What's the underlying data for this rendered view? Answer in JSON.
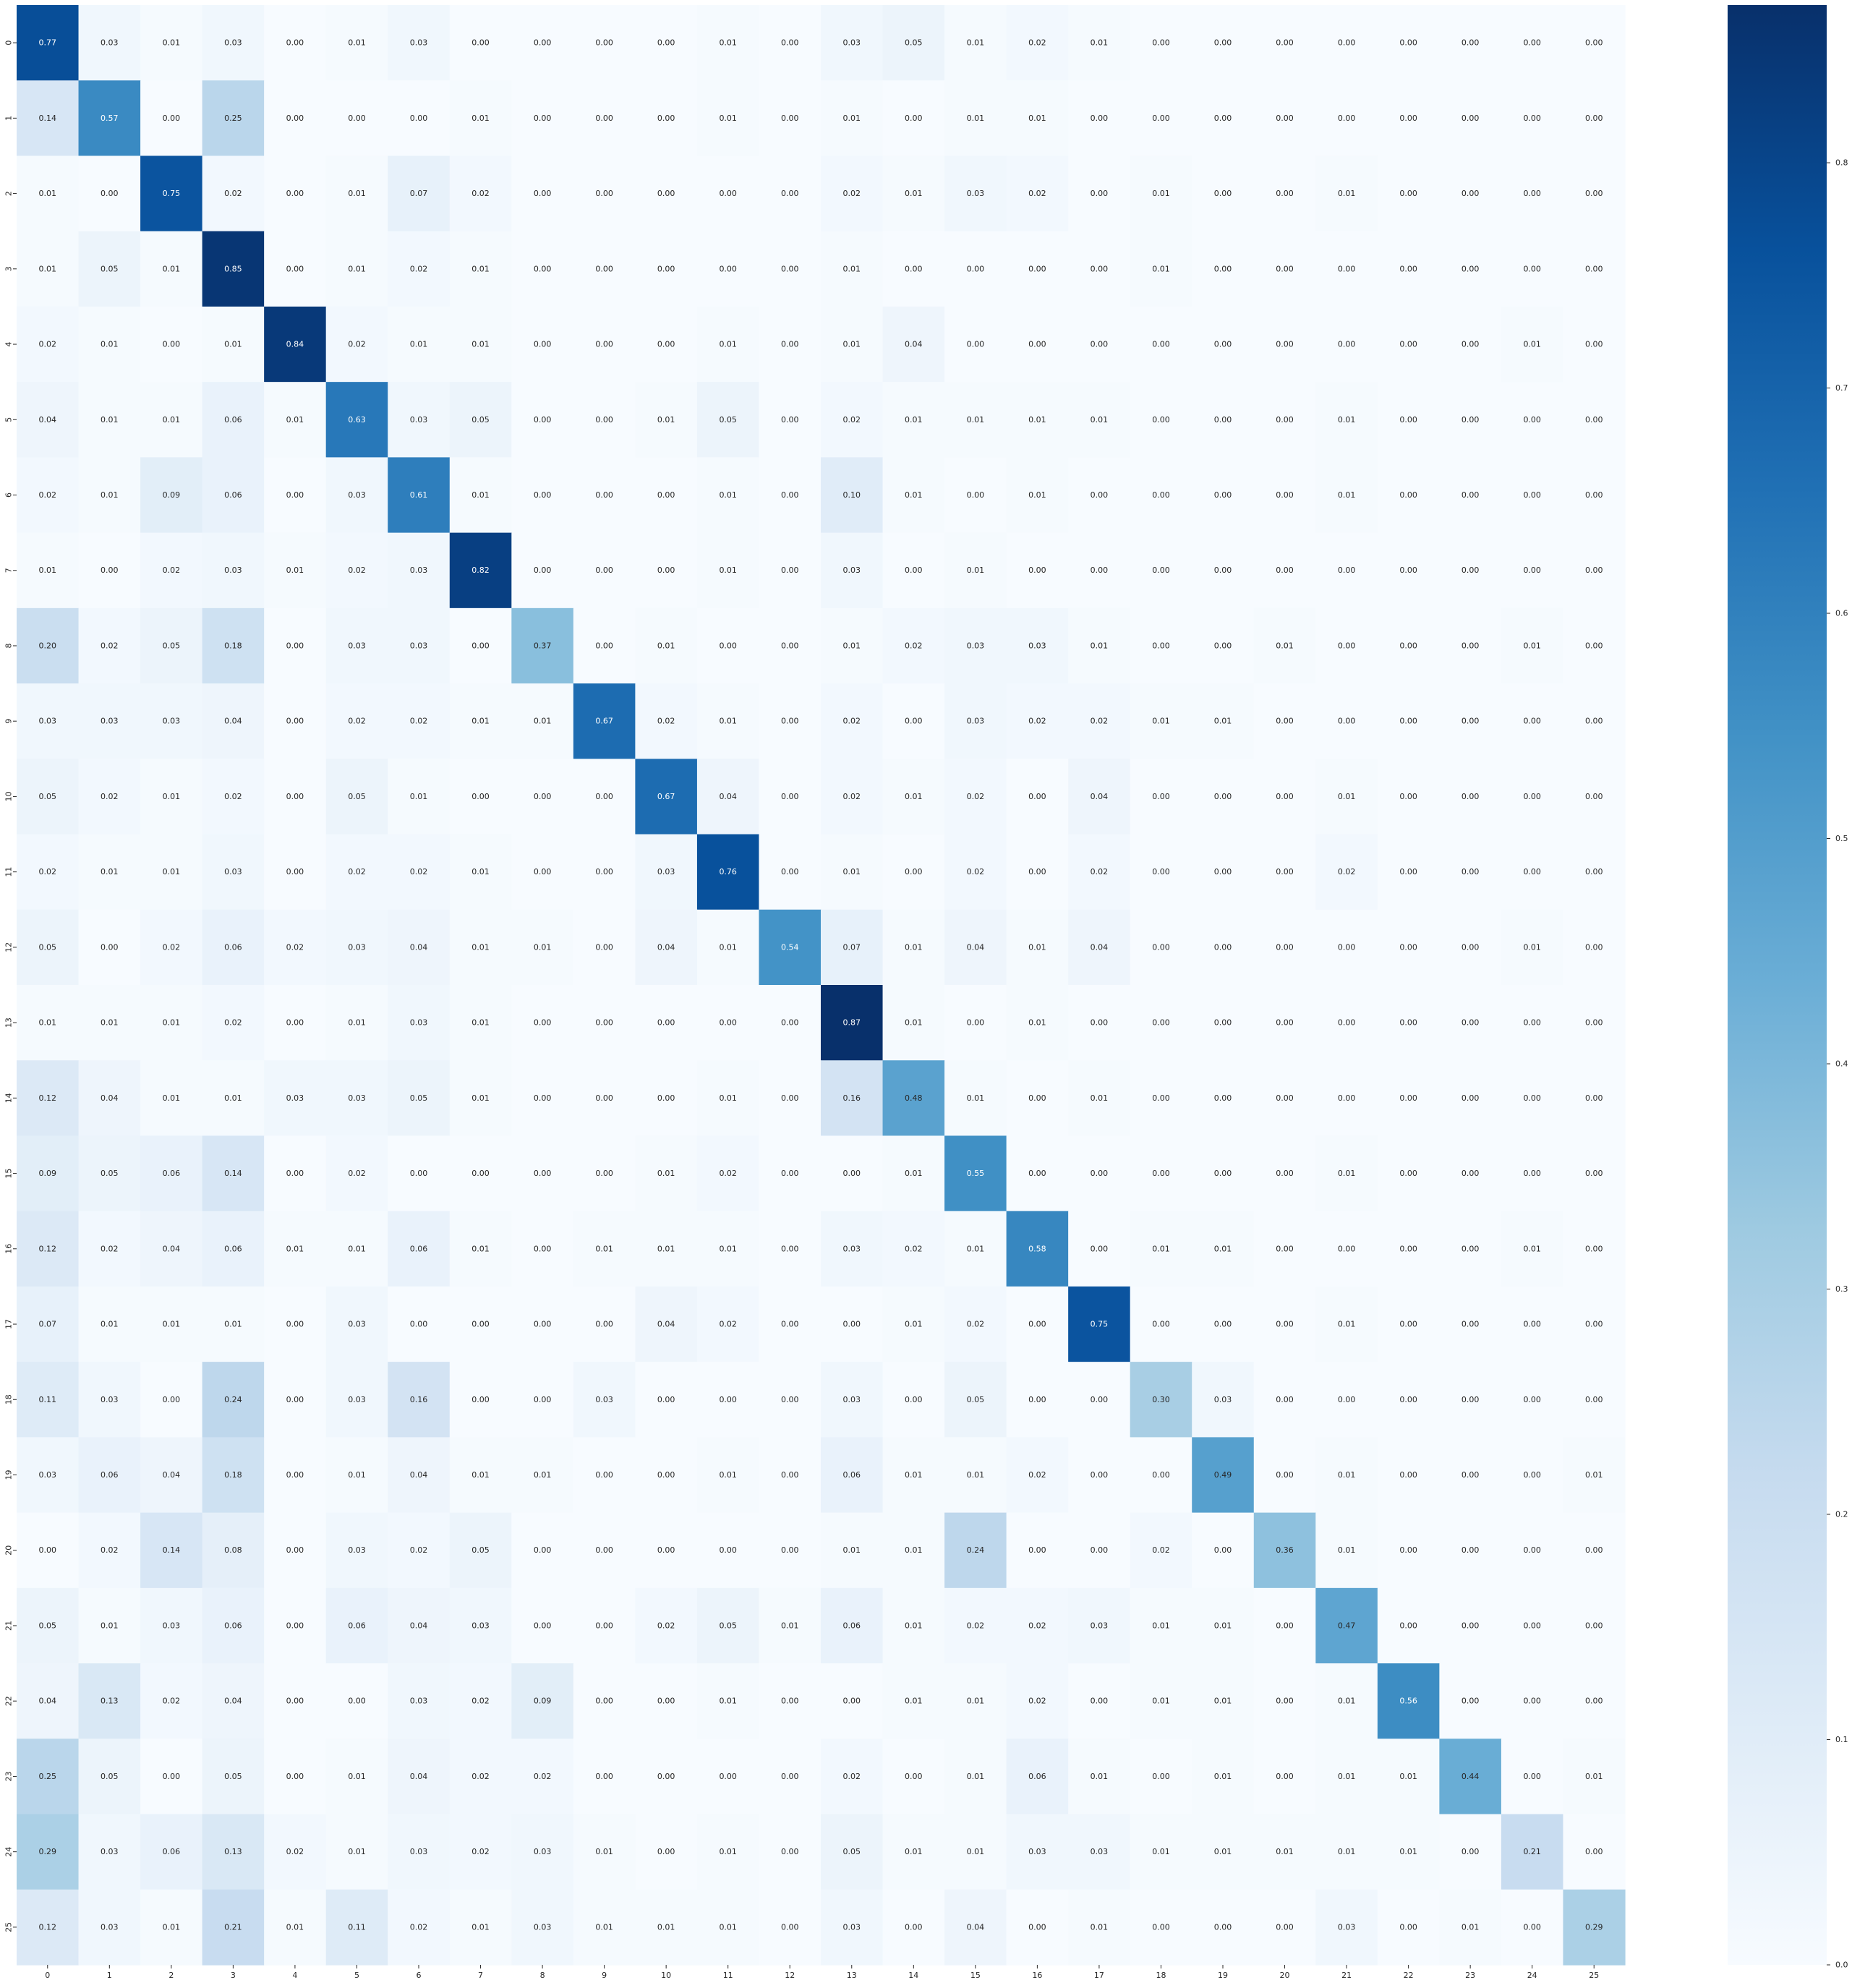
{
  "chart_data": {
    "type": "heatmap",
    "title": "",
    "xlabel": "",
    "ylabel": "",
    "x_categories": [
      "0",
      "1",
      "2",
      "3",
      "4",
      "5",
      "6",
      "7",
      "8",
      "9",
      "10",
      "11",
      "12",
      "13",
      "14",
      "15",
      "16",
      "17",
      "18",
      "19",
      "20",
      "21",
      "22",
      "23",
      "24",
      "25"
    ],
    "y_categories": [
      "0",
      "1",
      "2",
      "3",
      "4",
      "5",
      "6",
      "7",
      "8",
      "9",
      "10",
      "11",
      "12",
      "13",
      "14",
      "15",
      "16",
      "17",
      "18",
      "19",
      "20",
      "21",
      "22",
      "23",
      "24",
      "25"
    ],
    "colormap": "Blues",
    "vmin": 0.0,
    "vmax": 0.87,
    "colorbar_ticks": [
      "0.0",
      "0.1",
      "0.2",
      "0.3",
      "0.4",
      "0.5",
      "0.6",
      "0.7",
      "0.8"
    ],
    "value_format": "0.00",
    "grid": false,
    "values": [
      [
        0.77,
        0.03,
        0.01,
        0.03,
        0.0,
        0.01,
        0.03,
        0.0,
        0.0,
        0.0,
        0.0,
        0.01,
        0.0,
        0.03,
        0.05,
        0.01,
        0.02,
        0.01,
        0.0,
        0.0,
        0.0,
        0.0,
        0.0,
        0.0,
        0.0,
        0.0
      ],
      [
        0.14,
        0.57,
        0.0,
        0.25,
        0.0,
        0.0,
        0.0,
        0.01,
        0.0,
        0.0,
        0.0,
        0.01,
        0.0,
        0.01,
        0.0,
        0.01,
        0.01,
        0.0,
        0.0,
        0.0,
        0.0,
        0.0,
        0.0,
        0.0,
        0.0,
        0.0
      ],
      [
        0.01,
        0.0,
        0.75,
        0.02,
        0.0,
        0.01,
        0.07,
        0.02,
        0.0,
        0.0,
        0.0,
        0.0,
        0.0,
        0.02,
        0.01,
        0.03,
        0.02,
        0.0,
        0.01,
        0.0,
        0.0,
        0.01,
        0.0,
        0.0,
        0.0,
        0.0
      ],
      [
        0.01,
        0.05,
        0.01,
        0.85,
        0.0,
        0.01,
        0.02,
        0.01,
        0.0,
        0.0,
        0.0,
        0.0,
        0.0,
        0.01,
        0.0,
        0.0,
        0.0,
        0.0,
        0.01,
        0.0,
        0.0,
        0.0,
        0.0,
        0.0,
        0.0,
        0.0
      ],
      [
        0.02,
        0.01,
        0.0,
        0.01,
        0.84,
        0.02,
        0.01,
        0.01,
        0.0,
        0.0,
        0.0,
        0.01,
        0.0,
        0.01,
        0.04,
        0.0,
        0.0,
        0.0,
        0.0,
        0.0,
        0.0,
        0.0,
        0.0,
        0.0,
        0.01,
        0.0
      ],
      [
        0.04,
        0.01,
        0.01,
        0.06,
        0.01,
        0.63,
        0.03,
        0.05,
        0.0,
        0.0,
        0.01,
        0.05,
        0.0,
        0.02,
        0.01,
        0.01,
        0.01,
        0.01,
        0.0,
        0.0,
        0.0,
        0.01,
        0.0,
        0.0,
        0.0,
        0.0
      ],
      [
        0.02,
        0.01,
        0.09,
        0.06,
        0.0,
        0.03,
        0.61,
        0.01,
        0.0,
        0.0,
        0.0,
        0.01,
        0.0,
        0.1,
        0.01,
        0.0,
        0.01,
        0.0,
        0.0,
        0.0,
        0.0,
        0.01,
        0.0,
        0.0,
        0.0,
        0.0
      ],
      [
        0.01,
        0.0,
        0.02,
        0.03,
        0.01,
        0.02,
        0.03,
        0.82,
        0.0,
        0.0,
        0.0,
        0.01,
        0.0,
        0.03,
        0.0,
        0.01,
        0.0,
        0.0,
        0.0,
        0.0,
        0.0,
        0.0,
        0.0,
        0.0,
        0.0,
        0.0
      ],
      [
        0.2,
        0.02,
        0.05,
        0.18,
        0.0,
        0.03,
        0.03,
        0.0,
        0.37,
        0.0,
        0.01,
        0.0,
        0.0,
        0.01,
        0.02,
        0.03,
        0.03,
        0.01,
        0.0,
        0.0,
        0.01,
        0.0,
        0.0,
        0.0,
        0.01,
        0.0
      ],
      [
        0.03,
        0.03,
        0.03,
        0.04,
        0.0,
        0.02,
        0.02,
        0.01,
        0.01,
        0.67,
        0.02,
        0.01,
        0.0,
        0.02,
        0.0,
        0.03,
        0.02,
        0.02,
        0.01,
        0.01,
        0.0,
        0.0,
        0.0,
        0.0,
        0.0,
        0.0
      ],
      [
        0.05,
        0.02,
        0.01,
        0.02,
        0.0,
        0.05,
        0.01,
        0.0,
        0.0,
        0.0,
        0.67,
        0.04,
        0.0,
        0.02,
        0.01,
        0.02,
        0.0,
        0.04,
        0.0,
        0.0,
        0.0,
        0.01,
        0.0,
        0.0,
        0.0,
        0.0
      ],
      [
        0.02,
        0.01,
        0.01,
        0.03,
        0.0,
        0.02,
        0.02,
        0.01,
        0.0,
        0.0,
        0.03,
        0.76,
        0.0,
        0.01,
        0.0,
        0.02,
        0.0,
        0.02,
        0.0,
        0.0,
        0.0,
        0.02,
        0.0,
        0.0,
        0.0,
        0.0
      ],
      [
        0.05,
        0.0,
        0.02,
        0.06,
        0.02,
        0.03,
        0.04,
        0.01,
        0.01,
        0.0,
        0.04,
        0.01,
        0.54,
        0.07,
        0.01,
        0.04,
        0.01,
        0.04,
        0.0,
        0.0,
        0.0,
        0.0,
        0.0,
        0.0,
        0.01,
        0.0
      ],
      [
        0.01,
        0.01,
        0.01,
        0.02,
        0.0,
        0.01,
        0.03,
        0.01,
        0.0,
        0.0,
        0.0,
        0.0,
        0.0,
        0.87,
        0.01,
        0.0,
        0.01,
        0.0,
        0.0,
        0.0,
        0.0,
        0.0,
        0.0,
        0.0,
        0.0,
        0.0
      ],
      [
        0.12,
        0.04,
        0.01,
        0.01,
        0.03,
        0.03,
        0.05,
        0.01,
        0.0,
        0.0,
        0.0,
        0.01,
        0.0,
        0.16,
        0.48,
        0.01,
        0.0,
        0.01,
        0.0,
        0.0,
        0.0,
        0.0,
        0.0,
        0.0,
        0.0,
        0.0
      ],
      [
        0.09,
        0.05,
        0.06,
        0.14,
        0.0,
        0.02,
        0.0,
        0.0,
        0.0,
        0.0,
        0.01,
        0.02,
        0.0,
        0.0,
        0.01,
        0.55,
        0.0,
        0.0,
        0.0,
        0.0,
        0.0,
        0.01,
        0.0,
        0.0,
        0.0,
        0.0
      ],
      [
        0.12,
        0.02,
        0.04,
        0.06,
        0.01,
        0.01,
        0.06,
        0.01,
        0.0,
        0.01,
        0.01,
        0.01,
        0.0,
        0.03,
        0.02,
        0.01,
        0.58,
        0.0,
        0.01,
        0.01,
        0.0,
        0.0,
        0.0,
        0.0,
        0.01,
        0.0
      ],
      [
        0.07,
        0.01,
        0.01,
        0.01,
        0.0,
        0.03,
        0.0,
        0.0,
        0.0,
        0.0,
        0.04,
        0.02,
        0.0,
        0.0,
        0.01,
        0.02,
        0.0,
        0.75,
        0.0,
        0.0,
        0.0,
        0.01,
        0.0,
        0.0,
        0.0,
        0.0
      ],
      [
        0.11,
        0.03,
        0.0,
        0.24,
        0.0,
        0.03,
        0.16,
        0.0,
        0.0,
        0.03,
        0.0,
        0.0,
        0.0,
        0.03,
        0.0,
        0.05,
        0.0,
        0.0,
        0.3,
        0.03,
        0.0,
        0.0,
        0.0,
        0.0,
        0.0,
        0.0
      ],
      [
        0.03,
        0.06,
        0.04,
        0.18,
        0.0,
        0.01,
        0.04,
        0.01,
        0.01,
        0.0,
        0.0,
        0.01,
        0.0,
        0.06,
        0.01,
        0.01,
        0.02,
        0.0,
        0.0,
        0.49,
        0.0,
        0.01,
        0.0,
        0.0,
        0.0,
        0.01
      ],
      [
        0.0,
        0.02,
        0.14,
        0.08,
        0.0,
        0.03,
        0.02,
        0.05,
        0.0,
        0.0,
        0.0,
        0.0,
        0.0,
        0.01,
        0.01,
        0.24,
        0.0,
        0.0,
        0.02,
        0.0,
        0.36,
        0.01,
        0.0,
        0.0,
        0.0,
        0.0
      ],
      [
        0.05,
        0.01,
        0.03,
        0.06,
        0.0,
        0.06,
        0.04,
        0.03,
        0.0,
        0.0,
        0.02,
        0.05,
        0.01,
        0.06,
        0.01,
        0.02,
        0.02,
        0.03,
        0.01,
        0.01,
        0.0,
        0.47,
        0.0,
        0.0,
        0.0,
        0.0
      ],
      [
        0.04,
        0.13,
        0.02,
        0.04,
        0.0,
        0.0,
        0.03,
        0.02,
        0.09,
        0.0,
        0.0,
        0.01,
        0.0,
        0.0,
        0.01,
        0.01,
        0.02,
        0.0,
        0.01,
        0.01,
        0.0,
        0.01,
        0.56,
        0.0,
        0.0,
        0.0
      ],
      [
        0.25,
        0.05,
        0.0,
        0.05,
        0.0,
        0.01,
        0.04,
        0.02,
        0.02,
        0.0,
        0.0,
        0.0,
        0.0,
        0.02,
        0.0,
        0.01,
        0.06,
        0.01,
        0.0,
        0.01,
        0.0,
        0.01,
        0.01,
        0.44,
        0.0,
        0.01
      ],
      [
        0.29,
        0.03,
        0.06,
        0.13,
        0.02,
        0.01,
        0.03,
        0.02,
        0.03,
        0.01,
        0.0,
        0.01,
        0.0,
        0.05,
        0.01,
        0.01,
        0.03,
        0.03,
        0.01,
        0.01,
        0.01,
        0.01,
        0.01,
        0.0,
        0.21,
        0.0
      ],
      [
        0.12,
        0.03,
        0.01,
        0.21,
        0.01,
        0.11,
        0.02,
        0.01,
        0.03,
        0.01,
        0.01,
        0.01,
        0.0,
        0.03,
        0.0,
        0.04,
        0.0,
        0.01,
        0.0,
        0.0,
        0.0,
        0.03,
        0.0,
        0.01,
        0.0,
        0.29
      ]
    ]
  }
}
